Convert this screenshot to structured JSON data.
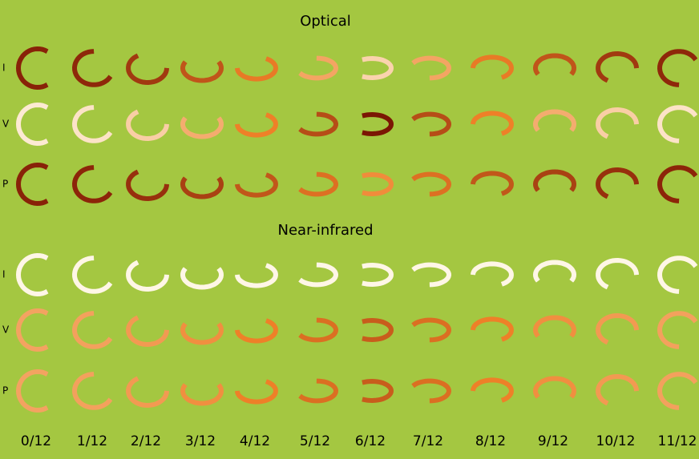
{
  "sections": [
    {
      "title": "Optical",
      "rows": [
        "I",
        "V",
        "P"
      ]
    },
    {
      "title": "Near-infrared",
      "rows": [
        "I",
        "V",
        "P"
      ]
    }
  ],
  "columns": [
    "0/12",
    "1/12",
    "2/12",
    "3/12",
    "4/12",
    "5/12",
    "6/12",
    "7/12",
    "8/12",
    "9/12",
    "10/12",
    "11/12"
  ]
}
